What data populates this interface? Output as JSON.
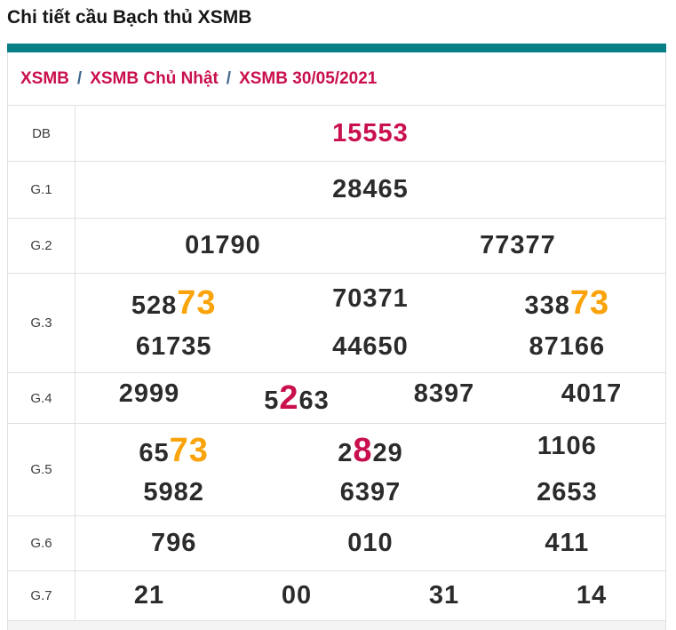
{
  "page_title": "Chi tiết cầu Bạch thủ XSMB",
  "breadcrumb": {
    "separator": "/",
    "items": [
      {
        "label": "XSMB"
      },
      {
        "label": "XSMB Chủ Nhật"
      },
      {
        "label": "XSMB 30/05/2021"
      }
    ]
  },
  "colors": {
    "accent_teal": "#087f86",
    "crimson": "#c9104c",
    "orange": "#faa30a",
    "number_text": "#2b2b2b",
    "label_text": "#3d3d3d",
    "breadcrumb_separator": "#41668f",
    "border": "#e0e0e0",
    "footer_strip": "#f4f4f4"
  },
  "results_table": {
    "rows": [
      {
        "label": "DB",
        "lines": [
          [
            [
              {
                "t": "15553",
                "c": "crimson"
              }
            ]
          ]
        ]
      },
      {
        "label": "G.1",
        "lines": [
          [
            [
              {
                "t": "28465"
              }
            ]
          ]
        ]
      },
      {
        "label": "G.2",
        "lines": [
          [
            [
              {
                "t": "01790"
              }
            ],
            [
              {
                "t": "77377"
              }
            ]
          ]
        ]
      },
      {
        "label": "G.3",
        "lines": [
          [
            [
              {
                "t": "528"
              },
              {
                "t": "73",
                "c": "orange",
                "big": true
              }
            ],
            [
              {
                "t": "70371"
              }
            ],
            [
              {
                "t": "338"
              },
              {
                "t": "73",
                "c": "orange",
                "big": true
              }
            ]
          ],
          [
            [
              {
                "t": "61735"
              }
            ],
            [
              {
                "t": "44650"
              }
            ],
            [
              {
                "t": "87166"
              }
            ]
          ]
        ]
      },
      {
        "label": "G.4",
        "lines": [
          [
            [
              {
                "t": "2999"
              }
            ],
            [
              {
                "t": "5"
              },
              {
                "t": "2",
                "c": "crimson",
                "big": true
              },
              {
                "t": "63"
              }
            ],
            [
              {
                "t": "8397"
              }
            ],
            [
              {
                "t": "4017"
              }
            ]
          ]
        ]
      },
      {
        "label": "G.5",
        "lines": [
          [
            [
              {
                "t": "65"
              },
              {
                "t": "73",
                "c": "orange",
                "big": true
              }
            ],
            [
              {
                "t": "2"
              },
              {
                "t": "8",
                "c": "crimson",
                "big": true
              },
              {
                "t": "29"
              }
            ],
            [
              {
                "t": "1106"
              }
            ]
          ],
          [
            [
              {
                "t": "5982"
              }
            ],
            [
              {
                "t": "6397"
              }
            ],
            [
              {
                "t": "2653"
              }
            ]
          ]
        ]
      },
      {
        "label": "G.6",
        "lines": [
          [
            [
              {
                "t": "796"
              }
            ],
            [
              {
                "t": "010"
              }
            ],
            [
              {
                "t": "411"
              }
            ]
          ]
        ]
      },
      {
        "label": "G.7",
        "lines": [
          [
            [
              {
                "t": "21"
              }
            ],
            [
              {
                "t": "00"
              }
            ],
            [
              {
                "t": "31"
              }
            ],
            [
              {
                "t": "14"
              }
            ]
          ]
        ]
      }
    ]
  }
}
